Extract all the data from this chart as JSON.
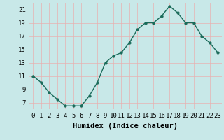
{
  "x": [
    0,
    1,
    2,
    3,
    4,
    5,
    6,
    7,
    8,
    9,
    10,
    11,
    12,
    13,
    14,
    15,
    16,
    17,
    18,
    19,
    20,
    21,
    22,
    23
  ],
  "y": [
    11,
    10,
    8.5,
    7.5,
    6.5,
    6.5,
    6.5,
    8,
    10,
    13,
    14,
    14.5,
    16,
    18,
    19,
    19,
    20,
    21.5,
    20.5,
    19,
    19,
    17,
    16,
    14.5
  ],
  "line_color": "#1a6b5a",
  "marker_color": "#1a6b5a",
  "bg_color": "#c8e8e8",
  "grid_color": "#ffffff",
  "xlabel": "Humidex (Indice chaleur)",
  "ylim": [
    6,
    22
  ],
  "xlim": [
    -0.5,
    23.5
  ],
  "yticks": [
    7,
    9,
    11,
    13,
    15,
    17,
    19,
    21
  ],
  "xtick_labels": [
    "0",
    "1",
    "2",
    "3",
    "4",
    "5",
    "6",
    "7",
    "8",
    "9",
    "10",
    "11",
    "12",
    "13",
    "14",
    "15",
    "16",
    "17",
    "18",
    "19",
    "20",
    "21",
    "22",
    "23"
  ],
  "xlabel_fontsize": 7.5,
  "tick_fontsize": 6.5,
  "line_width": 1.0,
  "marker_size": 2.5
}
